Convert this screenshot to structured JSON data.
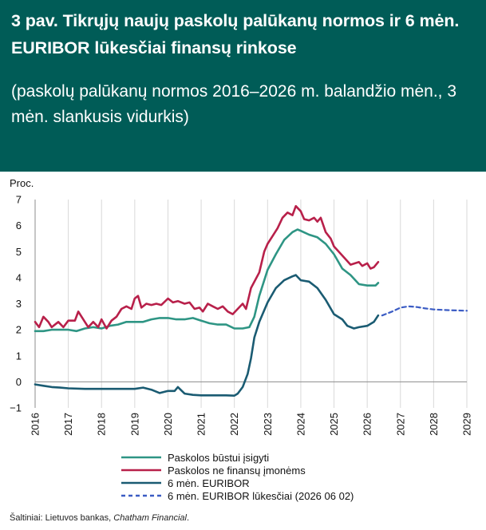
{
  "header": {
    "title": "3 pav.  Tikrųjų naujų paskolų palūkanų normos ir 6 mėn. EURIBOR lūkesčiai finansų rinkose",
    "subtitle": "(paskolų palūkanų normos 2016–2026 m. balandžio mėn., 3 mėn. slankusis vidurkis)"
  },
  "source": {
    "prefix": "Šaltiniai: Lietuvos bankas, ",
    "emph": "Chatham Financial",
    "suffix": "."
  },
  "chart_data": {
    "type": "line",
    "ylabel": "Proc.",
    "xlim": [
      2016,
      2029
    ],
    "ylim": [
      -1,
      7
    ],
    "yticks": [
      -1,
      0,
      1,
      2,
      3,
      4,
      5,
      6,
      7
    ],
    "ytick_labels": [
      "−1",
      "0",
      "1",
      "2",
      "3",
      "4",
      "5",
      "6",
      "7"
    ],
    "xticks": [
      2016,
      2017,
      2018,
      2019,
      2020,
      2021,
      2022,
      2023,
      2024,
      2025,
      2026,
      2027,
      2028,
      2029
    ],
    "xtick_labels": [
      "2016",
      "2017",
      "2018",
      "2019",
      "2020",
      "2021",
      "2022",
      "2023",
      "2024",
      "2025",
      "2026",
      "2027",
      "2028",
      "2029"
    ],
    "grid": "vertical",
    "legend_position": "bottom",
    "series": [
      {
        "name": "Paskolos būstui įsigyti",
        "color": "#2e9584",
        "style": "solid",
        "points": [
          [
            2016.0,
            1.95
          ],
          [
            2016.25,
            1.95
          ],
          [
            2016.5,
            2.0
          ],
          [
            2016.75,
            2.0
          ],
          [
            2017.0,
            2.0
          ],
          [
            2017.25,
            1.95
          ],
          [
            2017.5,
            2.05
          ],
          [
            2017.75,
            2.1
          ],
          [
            2018.0,
            2.05
          ],
          [
            2018.25,
            2.15
          ],
          [
            2018.5,
            2.2
          ],
          [
            2018.75,
            2.3
          ],
          [
            2019.0,
            2.3
          ],
          [
            2019.25,
            2.3
          ],
          [
            2019.5,
            2.4
          ],
          [
            2019.75,
            2.45
          ],
          [
            2020.0,
            2.45
          ],
          [
            2020.25,
            2.4
          ],
          [
            2020.5,
            2.4
          ],
          [
            2020.75,
            2.45
          ],
          [
            2021.0,
            2.35
          ],
          [
            2021.25,
            2.25
          ],
          [
            2021.5,
            2.2
          ],
          [
            2021.75,
            2.2
          ],
          [
            2022.0,
            2.05
          ],
          [
            2022.25,
            2.05
          ],
          [
            2022.45,
            2.1
          ],
          [
            2022.6,
            2.5
          ],
          [
            2022.75,
            3.3
          ],
          [
            2023.0,
            4.3
          ],
          [
            2023.25,
            4.9
          ],
          [
            2023.5,
            5.45
          ],
          [
            2023.75,
            5.75
          ],
          [
            2023.9,
            5.85
          ],
          [
            2024.0,
            5.8
          ],
          [
            2024.25,
            5.65
          ],
          [
            2024.5,
            5.55
          ],
          [
            2024.75,
            5.3
          ],
          [
            2025.0,
            4.9
          ],
          [
            2025.25,
            4.35
          ],
          [
            2025.5,
            4.1
          ],
          [
            2025.75,
            3.75
          ],
          [
            2026.0,
            3.7
          ],
          [
            2026.25,
            3.7
          ],
          [
            2026.33,
            3.8
          ]
        ]
      },
      {
        "name": "Paskolos ne finansų įmonėms",
        "color": "#b8204a",
        "style": "solid",
        "points": [
          [
            2016.0,
            2.3
          ],
          [
            2016.12,
            2.1
          ],
          [
            2016.25,
            2.5
          ],
          [
            2016.4,
            2.3
          ],
          [
            2016.5,
            2.1
          ],
          [
            2016.7,
            2.3
          ],
          [
            2016.85,
            2.1
          ],
          [
            2017.0,
            2.35
          ],
          [
            2017.2,
            2.35
          ],
          [
            2017.3,
            2.7
          ],
          [
            2017.45,
            2.4
          ],
          [
            2017.6,
            2.1
          ],
          [
            2017.75,
            2.3
          ],
          [
            2017.9,
            2.1
          ],
          [
            2018.0,
            2.4
          ],
          [
            2018.15,
            2.05
          ],
          [
            2018.3,
            2.35
          ],
          [
            2018.45,
            2.5
          ],
          [
            2018.6,
            2.8
          ],
          [
            2018.75,
            2.9
          ],
          [
            2018.9,
            2.8
          ],
          [
            2019.0,
            3.2
          ],
          [
            2019.1,
            3.3
          ],
          [
            2019.2,
            2.85
          ],
          [
            2019.35,
            3.0
          ],
          [
            2019.5,
            2.95
          ],
          [
            2019.65,
            3.0
          ],
          [
            2019.8,
            2.95
          ],
          [
            2020.0,
            3.2
          ],
          [
            2020.15,
            3.05
          ],
          [
            2020.3,
            3.1
          ],
          [
            2020.5,
            3.0
          ],
          [
            2020.65,
            3.05
          ],
          [
            2020.8,
            2.8
          ],
          [
            2020.95,
            2.85
          ],
          [
            2021.05,
            2.7
          ],
          [
            2021.2,
            3.0
          ],
          [
            2021.35,
            2.9
          ],
          [
            2021.5,
            2.8
          ],
          [
            2021.65,
            2.9
          ],
          [
            2021.8,
            2.7
          ],
          [
            2021.95,
            2.6
          ],
          [
            2022.1,
            2.8
          ],
          [
            2022.25,
            3.0
          ],
          [
            2022.35,
            2.8
          ],
          [
            2022.5,
            3.6
          ],
          [
            2022.75,
            4.2
          ],
          [
            2022.9,
            5.0
          ],
          [
            2023.0,
            5.3
          ],
          [
            2023.15,
            5.6
          ],
          [
            2023.3,
            5.9
          ],
          [
            2023.45,
            6.3
          ],
          [
            2023.6,
            6.5
          ],
          [
            2023.75,
            6.4
          ],
          [
            2023.85,
            6.75
          ],
          [
            2024.0,
            6.55
          ],
          [
            2024.1,
            6.25
          ],
          [
            2024.25,
            6.2
          ],
          [
            2024.4,
            6.3
          ],
          [
            2024.5,
            6.15
          ],
          [
            2024.6,
            6.3
          ],
          [
            2024.75,
            5.75
          ],
          [
            2024.9,
            5.5
          ],
          [
            2025.0,
            5.2
          ],
          [
            2025.25,
            4.85
          ],
          [
            2025.5,
            4.5
          ],
          [
            2025.75,
            4.6
          ],
          [
            2025.85,
            4.45
          ],
          [
            2026.0,
            4.55
          ],
          [
            2026.1,
            4.35
          ],
          [
            2026.2,
            4.4
          ],
          [
            2026.33,
            4.6
          ]
        ]
      },
      {
        "name": "6 mėn. EURIBOR",
        "color": "#1a5b72",
        "style": "solid",
        "points": [
          [
            2016.0,
            -0.1
          ],
          [
            2016.25,
            -0.15
          ],
          [
            2016.5,
            -0.2
          ],
          [
            2016.75,
            -0.22
          ],
          [
            2017.0,
            -0.25
          ],
          [
            2017.5,
            -0.27
          ],
          [
            2018.0,
            -0.27
          ],
          [
            2018.5,
            -0.27
          ],
          [
            2019.0,
            -0.27
          ],
          [
            2019.25,
            -0.22
          ],
          [
            2019.5,
            -0.3
          ],
          [
            2019.75,
            -0.43
          ],
          [
            2020.0,
            -0.35
          ],
          [
            2020.2,
            -0.35
          ],
          [
            2020.3,
            -0.2
          ],
          [
            2020.5,
            -0.45
          ],
          [
            2020.75,
            -0.5
          ],
          [
            2021.0,
            -0.52
          ],
          [
            2021.5,
            -0.52
          ],
          [
            2021.75,
            -0.52
          ],
          [
            2022.0,
            -0.53
          ],
          [
            2022.1,
            -0.45
          ],
          [
            2022.25,
            -0.2
          ],
          [
            2022.4,
            0.3
          ],
          [
            2022.5,
            0.9
          ],
          [
            2022.6,
            1.7
          ],
          [
            2022.75,
            2.3
          ],
          [
            2023.0,
            3.05
          ],
          [
            2023.25,
            3.6
          ],
          [
            2023.5,
            3.9
          ],
          [
            2023.75,
            4.05
          ],
          [
            2023.85,
            4.1
          ],
          [
            2024.0,
            3.9
          ],
          [
            2024.25,
            3.85
          ],
          [
            2024.5,
            3.6
          ],
          [
            2024.75,
            3.15
          ],
          [
            2025.0,
            2.6
          ],
          [
            2025.25,
            2.4
          ],
          [
            2025.4,
            2.15
          ],
          [
            2025.6,
            2.05
          ],
          [
            2025.75,
            2.1
          ],
          [
            2026.0,
            2.15
          ],
          [
            2026.2,
            2.3
          ],
          [
            2026.33,
            2.55
          ]
        ]
      },
      {
        "name": "6 mėn. EURIBOR lūkesčiai (2026 06 02)",
        "color": "#3b5cc4",
        "style": "dashed",
        "points": [
          [
            2026.45,
            2.55
          ],
          [
            2026.75,
            2.7
          ],
          [
            2027.0,
            2.85
          ],
          [
            2027.25,
            2.9
          ],
          [
            2027.5,
            2.87
          ],
          [
            2027.75,
            2.82
          ],
          [
            2028.0,
            2.78
          ],
          [
            2028.5,
            2.75
          ],
          [
            2029.0,
            2.73
          ]
        ]
      }
    ]
  }
}
